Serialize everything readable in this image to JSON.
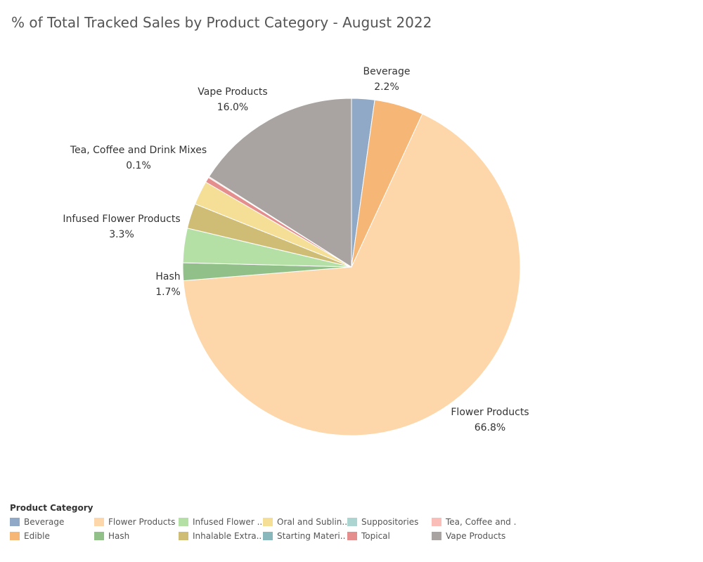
{
  "title": "% of Total Tracked Sales by Product Category - August 2022",
  "legend": {
    "title": "Product Category",
    "items": [
      {
        "label": "Beverage",
        "color": "#8fa9c7"
      },
      {
        "label": "Edible",
        "color": "#f5b676"
      },
      {
        "label": "Flower Products",
        "color": "#fdd6a9"
      },
      {
        "label": "Hash",
        "color": "#92c089"
      },
      {
        "label": "Infused Flower ..",
        "color": "#b5e0a5"
      },
      {
        "label": "Inhalable Extra..",
        "color": "#cfbd75"
      },
      {
        "label": "Oral and Sublin..",
        "color": "#f5df97"
      },
      {
        "label": "Starting Materi..",
        "color": "#88b8bb"
      },
      {
        "label": "Suppositories",
        "color": "#acd5d1"
      },
      {
        "label": "Topical",
        "color": "#e48f8d"
      },
      {
        "label": "Tea, Coffee and ..",
        "color": "#fbbdb7"
      },
      {
        "label": "Vape Products",
        "color": "#a9a4a1"
      }
    ]
  },
  "chart_data": {
    "type": "pie",
    "start_angle_deg": 0,
    "direction": "clockwise",
    "slices": [
      {
        "category": "Beverage",
        "value": 2.2,
        "color": "#8fa9c7",
        "label": "Beverage",
        "value_label": "2.2%"
      },
      {
        "category": "Edible",
        "value": 4.7,
        "color": "#f5b676",
        "label": "",
        "value_label": ""
      },
      {
        "category": "Flower Products",
        "value": 66.8,
        "color": "#fdd6a9",
        "label": "Flower Products",
        "value_label": "66.8%"
      },
      {
        "category": "Hash",
        "value": 1.7,
        "color": "#92c089",
        "label": "Hash",
        "value_label": "1.7%"
      },
      {
        "category": "Infused Flower Products",
        "value": 3.3,
        "color": "#b5e0a5",
        "label": "Infused Flower Products",
        "value_label": "3.3%"
      },
      {
        "category": "Inhalable Extracts",
        "value": 2.4,
        "color": "#cfbd75",
        "label": "",
        "value_label": ""
      },
      {
        "category": "Oral and Sublingual",
        "value": 2.3,
        "color": "#f5df97",
        "label": "",
        "value_label": ""
      },
      {
        "category": "Topical",
        "value": 0.5,
        "color": "#e48f8d",
        "label": "",
        "value_label": ""
      },
      {
        "category": "Tea, Coffee and Drink Mixes",
        "value": 0.1,
        "color": "#fbbdb7",
        "label": "Tea, Coffee and Drink Mixes",
        "value_label": "0.1%"
      },
      {
        "category": "Vape Products",
        "value": 16.0,
        "color": "#a9a4a1",
        "label": "Vape Products",
        "value_label": "16.0%"
      }
    ]
  }
}
